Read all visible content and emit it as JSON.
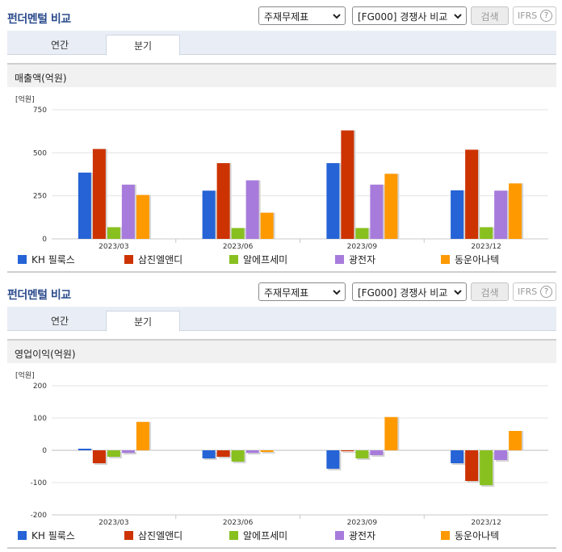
{
  "sections": [
    {
      "title": "펀더멘털 비교",
      "select_statement": "주재무제표",
      "select_compare": "[FG000] 경쟁사 비교",
      "search_label": "검색",
      "ifrs_label": "IFRS",
      "help_glyph": "?",
      "tab_annual": "연간",
      "tab_quarter": "분기",
      "metric_label": "매출액(억원)"
    },
    {
      "title": "펀더멘털 비교",
      "select_statement": "주재무제표",
      "select_compare": "[FG000] 경쟁사 비교",
      "search_label": "검색",
      "ifrs_label": "IFRS",
      "help_glyph": "?",
      "tab_annual": "연간",
      "tab_quarter": "분기",
      "metric_label": "영업이익(억원)"
    }
  ],
  "colors": {
    "KH 필룩스": "#2563d6",
    "삼진엘앤디": "#cc3300",
    "알에프세미": "#88c020",
    "광전자": "#a77bdb",
    "동운아나텍": "#ff9900"
  },
  "chart_data": [
    {
      "type": "bar",
      "unit_label": "[억원]",
      "categories": [
        "2023/03",
        "2023/06",
        "2023/09",
        "2023/12"
      ],
      "ylim": [
        0,
        750
      ],
      "yticks": [
        0,
        250,
        500,
        750
      ],
      "grid": true,
      "legend": "bottom",
      "series": [
        {
          "name": "KH 필룩스",
          "values": [
            385,
            280,
            440,
            282
          ]
        },
        {
          "name": "삼진엘앤디",
          "values": [
            522,
            440,
            630,
            518
          ]
        },
        {
          "name": "알에프세미",
          "values": [
            68,
            63,
            63,
            68
          ]
        },
        {
          "name": "광전자",
          "values": [
            315,
            340,
            315,
            280
          ]
        },
        {
          "name": "동운아나텍",
          "values": [
            255,
            152,
            378,
            322
          ]
        }
      ]
    },
    {
      "type": "bar",
      "unit_label": "[억원]",
      "categories": [
        "2023/03",
        "2023/06",
        "2023/09",
        "2023/12"
      ],
      "ylim": [
        -200,
        200
      ],
      "yticks": [
        -200,
        -100,
        0,
        100,
        200
      ],
      "grid": true,
      "legend": "bottom",
      "series": [
        {
          "name": "KH 필룩스",
          "values": [
            5,
            -25,
            -57,
            -40
          ]
        },
        {
          "name": "삼진엘앤디",
          "values": [
            -40,
            -20,
            -3,
            -95
          ]
        },
        {
          "name": "알에프세미",
          "values": [
            -20,
            -35,
            -25,
            -108
          ]
        },
        {
          "name": "광전자",
          "values": [
            -8,
            -8,
            -15,
            -30
          ]
        },
        {
          "name": "동운아나텍",
          "values": [
            88,
            -5,
            103,
            60
          ]
        }
      ]
    }
  ]
}
